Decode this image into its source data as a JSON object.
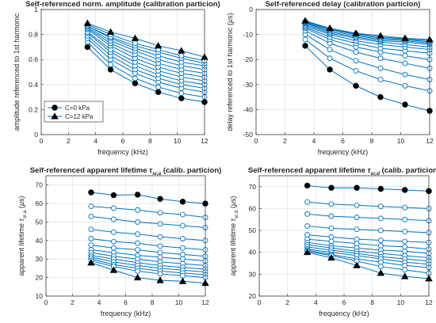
{
  "colors": {
    "line": "#0072BD",
    "grid": "#dcdcdc",
    "axis": "#262626"
  },
  "chart_data": [
    {
      "type": "line",
      "title": "Self-referenced norm. amplitude (calibration particion)",
      "title_parts": [],
      "xlabel": "frequency (kHz)",
      "ylabel": "amplitude referenced to 1st harmonic",
      "ylabel_parts": [],
      "xlim": [
        0,
        12
      ],
      "ylim": [
        0,
        1
      ],
      "xticks": [
        "0",
        "2",
        "4",
        "6",
        "8",
        "10",
        "12"
      ],
      "yticks": [
        "0",
        "0.2",
        "0.4",
        "0.6",
        "0.8",
        "1"
      ],
      "grid": true,
      "legend": {
        "placement": "lower-left",
        "entries": [
          "C=0 kPa",
          "C=12 kPa"
        ]
      },
      "x": [
        3.4,
        5.1,
        6.9,
        8.6,
        10.3,
        12.0
      ],
      "series": [
        {
          "label": "C=0 kPa",
          "marker": "filled-circle",
          "values": [
            0.7,
            0.52,
            0.41,
            0.34,
            0.29,
            0.26
          ]
        },
        {
          "marker": "open-circle",
          "values": [
            0.74,
            0.56,
            0.45,
            0.38,
            0.33,
            0.3
          ]
        },
        {
          "marker": "open-circle",
          "values": [
            0.77,
            0.6,
            0.49,
            0.42,
            0.37,
            0.34
          ]
        },
        {
          "marker": "open-circle",
          "values": [
            0.79,
            0.63,
            0.52,
            0.45,
            0.4,
            0.37
          ]
        },
        {
          "marker": "open-circle",
          "values": [
            0.81,
            0.66,
            0.55,
            0.48,
            0.43,
            0.4
          ]
        },
        {
          "marker": "open-circle",
          "values": [
            0.82,
            0.68,
            0.58,
            0.51,
            0.46,
            0.43
          ]
        },
        {
          "marker": "open-circle",
          "values": [
            0.84,
            0.71,
            0.61,
            0.54,
            0.49,
            0.46
          ]
        },
        {
          "marker": "open-circle",
          "values": [
            0.85,
            0.73,
            0.64,
            0.57,
            0.52,
            0.49
          ]
        },
        {
          "marker": "open-circle",
          "values": [
            0.86,
            0.75,
            0.67,
            0.6,
            0.55,
            0.52
          ]
        },
        {
          "marker": "open-circle",
          "values": [
            0.87,
            0.77,
            0.69,
            0.63,
            0.58,
            0.55
          ]
        },
        {
          "marker": "open-circle",
          "values": [
            0.87,
            0.78,
            0.71,
            0.66,
            0.61,
            0.57
          ]
        },
        {
          "marker": "open-circle",
          "values": [
            0.88,
            0.8,
            0.73,
            0.68,
            0.63,
            0.59
          ]
        },
        {
          "label": "C=12 kPa",
          "marker": "filled-triangle",
          "values": [
            0.89,
            0.82,
            0.77,
            0.71,
            0.67,
            0.62
          ]
        }
      ]
    },
    {
      "type": "line",
      "title": "Self-referenced delay (calibration particion)",
      "title_parts": [],
      "xlabel": "frequency (kHz)",
      "ylabel": "delay referenced to 1st harmonic (",
      "ylabel_parts": [
        "µ",
        "s)"
      ],
      "xlim": [
        0,
        12
      ],
      "ylim": [
        -50,
        0
      ],
      "xticks": [
        "0",
        "2",
        "4",
        "6",
        "8",
        "10",
        "12"
      ],
      "yticks": [
        "-50",
        "-40",
        "-30",
        "-20",
        "-10",
        "0"
      ],
      "grid": true,
      "x": [
        3.4,
        5.1,
        6.9,
        8.6,
        10.3,
        12.0
      ],
      "series": [
        {
          "marker": "filled-circle",
          "values": [
            -14.5,
            -24.0,
            -30.5,
            -35.0,
            -38.0,
            -40.5
          ]
        },
        {
          "marker": "open-circle",
          "values": [
            -12.0,
            -19.5,
            -24.5,
            -28.0,
            -30.5,
            -32.5
          ]
        },
        {
          "marker": "open-circle",
          "values": [
            -10.0,
            -16.0,
            -20.5,
            -23.5,
            -26.0,
            -28.0
          ]
        },
        {
          "marker": "open-circle",
          "values": [
            -8.5,
            -13.5,
            -17.0,
            -19.5,
            -21.5,
            -23.5
          ]
        },
        {
          "marker": "open-circle",
          "values": [
            -7.5,
            -12.0,
            -15.0,
            -17.0,
            -18.5,
            -20.0
          ]
        },
        {
          "marker": "open-circle",
          "values": [
            -7.0,
            -11.0,
            -13.5,
            -15.5,
            -16.5,
            -17.5
          ]
        },
        {
          "marker": "open-circle",
          "values": [
            -6.5,
            -10.0,
            -12.5,
            -14.0,
            -15.0,
            -16.0
          ]
        },
        {
          "marker": "open-circle",
          "values": [
            -6.0,
            -9.5,
            -11.5,
            -13.0,
            -14.0,
            -15.0
          ]
        },
        {
          "marker": "open-circle",
          "values": [
            -5.5,
            -9.0,
            -11.0,
            -12.5,
            -13.0,
            -14.0
          ]
        },
        {
          "marker": "open-circle",
          "values": [
            -5.3,
            -8.5,
            -10.5,
            -12.0,
            -12.5,
            -13.5
          ]
        },
        {
          "marker": "open-circle",
          "values": [
            -5.0,
            -8.0,
            -10.0,
            -11.5,
            -12.0,
            -13.0
          ]
        },
        {
          "marker": "open-circle",
          "values": [
            -4.8,
            -7.8,
            -9.7,
            -11.0,
            -11.8,
            -12.5
          ]
        },
        {
          "marker": "filled-triangle",
          "values": [
            -4.5,
            -7.5,
            -9.5,
            -10.5,
            -11.5,
            -12.0
          ]
        }
      ]
    },
    {
      "type": "line",
      "title": "Self-referenced apparent lifetime ",
      "title_parts": [
        "τ",
        "sr,a",
        " (calib. particion)"
      ],
      "xlabel": "frequency (kHz)",
      "ylabel": "apparent lifetime ",
      "ylabel_parts": [
        "τ",
        "sr,a",
        " (",
        "µ",
        "s)"
      ],
      "xlim": [
        0,
        12
      ],
      "ylim": [
        10,
        75
      ],
      "xticks": [
        "0",
        "2",
        "4",
        "6",
        "8",
        "10",
        "12"
      ],
      "yticks": [
        "10",
        "20",
        "30",
        "40",
        "50",
        "60",
        "70"
      ],
      "grid": true,
      "x": [
        3.4,
        5.1,
        6.9,
        8.6,
        10.3,
        12.0
      ],
      "series": [
        {
          "marker": "filled-circle",
          "values": [
            66.0,
            64.5,
            64.8,
            62.5,
            61.0,
            60.0
          ]
        },
        {
          "marker": "open-circle",
          "values": [
            58.5,
            57.5,
            56.5,
            55.0,
            54.0,
            52.5
          ]
        },
        {
          "marker": "open-circle",
          "values": [
            53.0,
            51.5,
            50.0,
            49.0,
            48.0,
            47.0
          ]
        },
        {
          "marker": "open-circle",
          "values": [
            46.0,
            44.5,
            43.5,
            42.0,
            41.0,
            40.0
          ]
        },
        {
          "marker": "open-circle",
          "values": [
            41.0,
            39.5,
            38.5,
            37.0,
            36.0,
            35.0
          ]
        },
        {
          "marker": "open-circle",
          "values": [
            37.5,
            36.0,
            35.0,
            33.5,
            32.5,
            31.5
          ]
        },
        {
          "marker": "open-circle",
          "values": [
            35.0,
            33.5,
            32.0,
            31.0,
            30.0,
            29.0
          ]
        },
        {
          "marker": "open-circle",
          "values": [
            33.5,
            31.5,
            30.0,
            28.5,
            27.5,
            26.5
          ]
        },
        {
          "marker": "open-circle",
          "values": [
            32.0,
            30.0,
            28.0,
            26.5,
            25.5,
            24.5
          ]
        },
        {
          "marker": "open-circle",
          "values": [
            31.0,
            28.5,
            26.5,
            25.0,
            24.0,
            23.0
          ]
        },
        {
          "marker": "open-circle",
          "values": [
            30.0,
            27.0,
            25.0,
            23.5,
            22.5,
            21.5
          ]
        },
        {
          "marker": "open-circle",
          "values": [
            29.0,
            26.0,
            23.5,
            22.0,
            21.0,
            20.0
          ]
        },
        {
          "marker": "filled-triangle",
          "values": [
            28.0,
            24.0,
            20.0,
            18.5,
            18.0,
            17.0
          ]
        }
      ]
    },
    {
      "type": "line",
      "title": "Self-referenced apparent lifetime ",
      "title_parts": [
        "τ",
        "sr,d",
        " (calib. particion)"
      ],
      "xlabel": "frequency (kHz)",
      "ylabel": "apparent lifetime ",
      "ylabel_parts": [
        "τ",
        "sr,d",
        " (",
        "µ",
        "s)"
      ],
      "xlim": [
        0,
        12
      ],
      "ylim": [
        20,
        75
      ],
      "xticks": [
        "0",
        "2",
        "4",
        "6",
        "8",
        "10",
        "12"
      ],
      "yticks": [
        "20",
        "30",
        "40",
        "50",
        "60",
        "70"
      ],
      "grid": true,
      "x": [
        3.4,
        5.1,
        6.9,
        8.6,
        10.3,
        12.0
      ],
      "series": [
        {
          "marker": "filled-circle",
          "values": [
            70.5,
            69.5,
            69.5,
            69.0,
            68.5,
            68.0
          ]
        },
        {
          "marker": "open-circle",
          "values": [
            63.0,
            62.0,
            61.5,
            61.0,
            60.5,
            60.0
          ]
        },
        {
          "marker": "open-circle",
          "values": [
            57.5,
            56.5,
            56.0,
            55.5,
            55.0,
            54.5
          ]
        },
        {
          "marker": "open-circle",
          "values": [
            52.0,
            51.0,
            50.5,
            50.0,
            49.5,
            49.0
          ]
        },
        {
          "marker": "open-circle",
          "values": [
            48.0,
            47.0,
            46.0,
            45.5,
            45.0,
            44.5
          ]
        },
        {
          "marker": "open-circle",
          "values": [
            46.0,
            45.0,
            44.0,
            43.0,
            42.5,
            41.5
          ]
        },
        {
          "marker": "open-circle",
          "values": [
            44.5,
            43.0,
            42.0,
            41.0,
            40.5,
            39.5
          ]
        },
        {
          "marker": "open-circle",
          "values": [
            43.5,
            42.0,
            40.5,
            39.5,
            38.5,
            37.5
          ]
        },
        {
          "marker": "open-circle",
          "values": [
            42.5,
            41.0,
            39.5,
            38.0,
            37.0,
            36.0
          ]
        },
        {
          "marker": "open-circle",
          "values": [
            41.5,
            40.0,
            38.5,
            37.0,
            35.5,
            34.5
          ]
        },
        {
          "marker": "open-circle",
          "values": [
            41.0,
            39.0,
            37.0,
            35.5,
            34.0,
            33.0
          ]
        },
        {
          "marker": "open-circle",
          "values": [
            40.5,
            38.5,
            36.0,
            33.5,
            32.0,
            30.5
          ]
        },
        {
          "marker": "filled-triangle",
          "values": [
            40.0,
            37.5,
            34.0,
            30.5,
            29.0,
            28.0
          ]
        }
      ]
    }
  ]
}
